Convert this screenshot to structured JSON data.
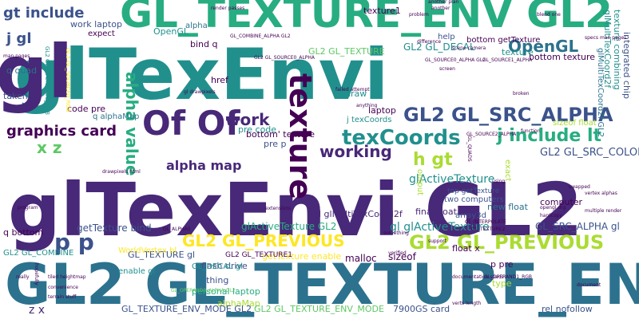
{
  "palette": {
    "c1": "#440154",
    "c2": "#3b528b",
    "c3": "#21908d",
    "c4": "#5dc863",
    "c5": "#fde725",
    "c6": "#482878",
    "c7": "#2c728e",
    "c8": "#27ad81",
    "c9": "#aadc32"
  },
  "words": [
    {
      "text": "glTexEnvi GL2",
      "color": "c6"
    },
    {
      "text": "GL2 GL_TEXTURE_ENV",
      "color": "c7"
    },
    {
      "text": "glTexEnvi",
      "color": "c3"
    },
    {
      "text": "GL_TEXTURE_ENV GL2",
      "color": "c8"
    },
    {
      "text": "gl",
      "color": "c6"
    },
    {
      "text": "Of Of",
      "color": "c6"
    },
    {
      "text": "texture",
      "color": "c1"
    },
    {
      "text": "GL2 GL_SRC_ALPHA",
      "color": "c2"
    },
    {
      "text": "texCoords",
      "color": "c3"
    },
    {
      "text": "gt include",
      "color": "c2"
    },
    {
      "text": "j gl",
      "color": "c2"
    },
    {
      "text": "OpenGL",
      "color": "c7"
    },
    {
      "text": "GL2 GL_PREVIOUS",
      "color": "c5"
    },
    {
      "text": "GL2 GL_PREVIOUS",
      "color": "c9"
    },
    {
      "text": "j include lt",
      "color": "c8"
    },
    {
      "text": "work",
      "color": "c6"
    },
    {
      "text": "working",
      "color": "c6"
    },
    {
      "text": "h gt",
      "color": "c9"
    },
    {
      "text": "p p",
      "color": "c2"
    },
    {
      "text": "x z",
      "color": "c4"
    },
    {
      "text": "alpha map",
      "color": "c6"
    },
    {
      "text": "alpha value",
      "color": "c8"
    },
    {
      "text": "graphics card",
      "color": "c1"
    },
    {
      "text": "glActiveTexture",
      "color": "c3"
    },
    {
      "text": "gl glActiveTexture",
      "color": "c3"
    },
    {
      "text": "GL2 GL_DECAL",
      "color": "c3"
    },
    {
      "text": "GL2 GL_TEXTURE",
      "color": "c4"
    },
    {
      "text": "GL2 GL_SRC_COLOR",
      "color": "c2"
    },
    {
      "text": "GL_SRC_ALPHA gl",
      "color": "c2"
    },
    {
      "text": "getTexture bind",
      "color": "c2"
    },
    {
      "text": "glActiveTexture GL2",
      "color": "c8"
    },
    {
      "text": "gl glMultiTexCoord2f",
      "color": "c6"
    },
    {
      "text": "GL_TEXTURE gl",
      "color": "c2"
    },
    {
      "text": "texture combining",
      "color": "c3"
    },
    {
      "text": "glMultiTexCoord2f",
      "color": "c3"
    },
    {
      "text": "integrated chip",
      "color": "c2"
    },
    {
      "text": "z x",
      "color": "c6"
    },
    {
      "text": "q quad",
      "color": "c7"
    },
    {
      "text": "sizeof float",
      "color": "c9"
    },
    {
      "text": "laptop",
      "color": "c1"
    },
    {
      "text": "bottom' texture",
      "color": "c1"
    },
    {
      "text": "bottom texture",
      "color": "c1"
    },
    {
      "text": "flash drive",
      "color": "c2"
    },
    {
      "text": "personal laptop",
      "color": "c8"
    },
    {
      "text": "alphaMap",
      "color": "c9"
    },
    {
      "text": "GL_TEXTURE_ENV_MODE GL2",
      "color": "c2"
    },
    {
      "text": "GL2 GL_TEXTURE_ENV_MODE",
      "color": "c4"
    },
    {
      "text": "7900GS card",
      "color": "c2"
    },
    {
      "text": "rel nofollow",
      "color": "c2"
    },
    {
      "text": "malloc",
      "color": "c1"
    },
    {
      "text": "sizeof",
      "color": "c1"
    },
    {
      "text": "getTexture enable",
      "color": "c5"
    },
    {
      "text": "new float",
      "color": "c7"
    },
    {
      "text": "final float",
      "color": "c6"
    },
    {
      "text": "computer",
      "color": "c1"
    },
    {
      "text": "two computers",
      "color": "c2"
    },
    {
      "text": "code pre",
      "color": "c1"
    },
    {
      "text": "pre code",
      "color": "c3"
    },
    {
      "text": "pre p",
      "color": "c2"
    },
    {
      "text": "href",
      "color": "c1"
    },
    {
      "text": "draw",
      "color": "c3"
    },
    {
      "text": "j texCoords",
      "color": "c3"
    },
    {
      "text": "texture1",
      "color": "c1"
    },
    {
      "text": "work laptop",
      "color": "c2"
    },
    {
      "text": "expect",
      "color": "c1"
    },
    {
      "text": "bind q",
      "color": "c1"
    },
    {
      "text": "texture",
      "color": "c3"
    },
    {
      "text": "OpenGL",
      "color": "c3"
    },
    {
      "text": "alpha",
      "color": "c7"
    },
    {
      "text": "taken",
      "color": "c2"
    },
    {
      "text": "q bottom",
      "color": "c1"
    },
    {
      "text": "GL2 GL_COMBINE",
      "color": "c3"
    },
    {
      "text": "q alphaMap",
      "color": "c7"
    },
    {
      "text": "float x",
      "color": "c1"
    },
    {
      "text": "p pre",
      "color": "c1"
    },
    {
      "text": "type",
      "color": "c9"
    },
    {
      "text": "thing",
      "color": "c2"
    },
    {
      "text": "enable gl",
      "color": "c3"
    },
    {
      "text": "WorldVertex bl",
      "color": "c5"
    },
    {
      "text": "GL_DECAL gl",
      "color": "c3"
    },
    {
      "text": "GL2 GL_TEXTURE1",
      "color": "c1"
    },
    {
      "text": "output",
      "color": "c9"
    },
    {
      "text": "exact",
      "color": "c9"
    },
    {
      "text": "array3d",
      "color": "c2"
    },
    {
      "text": "top getTexture",
      "color": "c2"
    },
    {
      "text": "bottom getTexture",
      "color": "c1"
    },
    {
      "text": "help",
      "color": "c2"
    },
    {
      "text": "glMultiTexCoord2f GL2",
      "color": "c7"
    }
  ],
  "smallwords": [
    {
      "text": "problem",
      "color": "c1"
    },
    {
      "text": "another plan",
      "color": "c1"
    },
    {
      "text": "render passes",
      "color": "c1"
    },
    {
      "text": "blend one",
      "color": "c1"
    },
    {
      "text": "GL_COMBINE_ALPHA GL2",
      "color": "c1"
    },
    {
      "text": "GL2 GL_OPERAND0_RGB",
      "color": "c3"
    },
    {
      "text": "GL2 GL_SOURCE0_ALPHA",
      "color": "c1"
    },
    {
      "text": "GL2 GL_SOURCE0_RGB",
      "color": "c5"
    },
    {
      "text": "GL_SOURCE0_ALPHA GL2",
      "color": "c1"
    },
    {
      "text": "GL_SOURCE1_ALPHA",
      "color": "c1"
    },
    {
      "text": "GL_SOURCE2_ALPHA",
      "color": "c1"
    },
    {
      "text": "GL_OPERAND0_ALPHA GL2",
      "color": "c4"
    },
    {
      "text": "GL_OPERAND1_RGB",
      "color": "c1"
    },
    {
      "text": "GL_INTERPOLATE",
      "color": "c1"
    },
    {
      "text": "GL_TEXTURE2",
      "color": "c1"
    },
    {
      "text": "GL_ALPHA0",
      "color": "c1"
    },
    {
      "text": "GL_QUADS",
      "color": "c1"
    },
    {
      "text": "hardcopy",
      "color": "c1"
    },
    {
      "text": "man pages",
      "color": "c1"
    },
    {
      "text": "scene camera",
      "color": "c1"
    },
    {
      "text": "specs man pages",
      "color": "c1"
    },
    {
      "text": "opengl org",
      "color": "c1"
    },
    {
      "text": "documentation specs",
      "color": "c1"
    },
    {
      "text": "verts length",
      "color": "c1"
    },
    {
      "text": "tiled heightmap",
      "color": "c1"
    },
    {
      "text": "terrain stuff",
      "color": "c1"
    },
    {
      "text": "convenience",
      "color": "c1"
    },
    {
      "text": "anything",
      "color": "c1"
    },
    {
      "text": "something",
      "color": "c1"
    },
    {
      "text": "failed attempt",
      "color": "c1"
    },
    {
      "text": "gl drawpixels",
      "color": "c1"
    },
    {
      "text": "drawpixels html",
      "color": "c1"
    },
    {
      "text": "another",
      "color": "c1"
    },
    {
      "text": "document",
      "color": "c1"
    },
    {
      "text": "broken",
      "color": "c1"
    },
    {
      "text": "difference",
      "color": "c1"
    },
    {
      "text": "verified",
      "color": "c1"
    },
    {
      "text": "multiple render",
      "color": "c1"
    },
    {
      "text": "vertex alphas",
      "color": "c1"
    },
    {
      "text": "swapped",
      "color": "c1"
    },
    {
      "text": "hopefully",
      "color": "c1"
    },
    {
      "text": "program",
      "color": "c1"
    },
    {
      "text": "screen",
      "color": "c1"
    },
    {
      "text": "really",
      "color": "c1"
    },
    {
      "text": "using",
      "color": "c1"
    },
    {
      "text": "support",
      "color": "c1"
    },
    {
      "text": "function",
      "color": "c1"
    },
    {
      "text": "extensions",
      "color": "c1"
    }
  ]
}
